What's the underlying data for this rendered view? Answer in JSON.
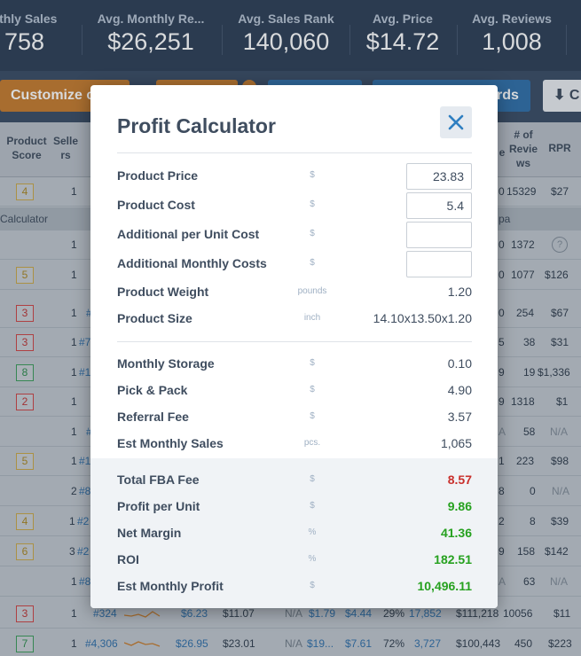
{
  "stats": [
    {
      "label": "nthly Sales",
      "value": "758"
    },
    {
      "label": "Avg. Monthly Re...",
      "value": "$26,251"
    },
    {
      "label": "Avg. Sales Rank",
      "value": "140,060"
    },
    {
      "label": "Avg. Price",
      "value": "$14.72"
    },
    {
      "label": "Avg. Reviews",
      "value": "1,008"
    }
  ],
  "toolbar": {
    "customize_label": "Customize c",
    "rds_label": "rds",
    "download_label": "C"
  },
  "grid": {
    "headers": {
      "product_score": "Product Score",
      "sellers": "Selle rs",
      "reviews": "# of Revie ws",
      "rpr": "RPR",
      "e_fragment": "e"
    },
    "calculator_label": "Calculator",
    "calculator_right": "pa",
    "rows": [
      {
        "score": "4",
        "score_color": "yellow",
        "sellers": "1",
        "mid": "",
        "right1": "0",
        "reviews": "15329",
        "rpr": "$27"
      },
      {
        "score": "",
        "score_color": "",
        "sellers": "1",
        "mid": "",
        "right1": "0",
        "reviews": "1372",
        "rpr": "?"
      },
      {
        "score": "5",
        "score_color": "yellow",
        "sellers": "1",
        "mid": "",
        "right1": "0",
        "reviews": "1077",
        "rpr": "$126"
      },
      {
        "score": "3",
        "score_color": "red",
        "sellers": "1",
        "mid": "#",
        "right1": "0",
        "reviews": "254",
        "rpr": "$67"
      },
      {
        "score": "3",
        "score_color": "red",
        "sellers": "1",
        "mid": "#7",
        "right1": "5",
        "reviews": "38",
        "rpr": "$31"
      },
      {
        "score": "8",
        "score_color": "green",
        "sellers": "1",
        "mid": "#1",
        "right1": "9",
        "reviews": "19",
        "rpr": "$1,336"
      },
      {
        "score": "2",
        "score_color": "red",
        "sellers": "1",
        "mid": "",
        "right1": "9",
        "reviews": "1318",
        "rpr": "$1"
      },
      {
        "score": "",
        "score_color": "",
        "sellers": "1",
        "mid": "#",
        "right1": "A",
        "reviews": "58",
        "rpr": "N/A"
      },
      {
        "score": "5",
        "score_color": "yellow",
        "sellers": "1",
        "mid": "#1",
        "right1": "1",
        "reviews": "223",
        "rpr": "$98"
      },
      {
        "score": "",
        "score_color": "",
        "sellers": "2",
        "mid": "#8",
        "right1": "8",
        "reviews": "0",
        "rpr": "N/A"
      },
      {
        "score": "4",
        "score_color": "yellow",
        "sellers": "1",
        "mid": "#2",
        "right1": "2",
        "reviews": "8",
        "rpr": "$39"
      },
      {
        "score": "6",
        "score_color": "yellow",
        "sellers": "3",
        "mid": "#2",
        "right1": "9",
        "reviews": "158",
        "rpr": "$142"
      },
      {
        "score": "",
        "score_color": "",
        "sellers": "1",
        "mid": "#8",
        "right1": "A",
        "reviews": "63",
        "rpr": "N/A"
      }
    ],
    "bottom_rows": [
      {
        "score": "3",
        "score_color": "red",
        "sellers": "1",
        "rank": "#324",
        "price": "$6.23",
        "cost": "$11.07",
        "c1": "N/A",
        "c2": "$1.79",
        "c3": "$4.44",
        "margin": "29%",
        "sales": "17,852",
        "revenue": "$111,218",
        "reviews": "10056",
        "rpr": "$11"
      },
      {
        "score": "7",
        "score_color": "green",
        "sellers": "1",
        "rank": "#4,306",
        "price": "$26.95",
        "cost": "$23.01",
        "c1": "N/A",
        "c2": "$19...",
        "c3": "$7.61",
        "margin": "72%",
        "sales": "3,727",
        "revenue": "$100,443",
        "reviews": "450",
        "rpr": "$223"
      }
    ]
  },
  "calculator": {
    "title": "Profit Calculator",
    "inputs": [
      {
        "label": "Product Price",
        "unit": "$",
        "value": "23.83"
      },
      {
        "label": "Product Cost",
        "unit": "$",
        "value": "5.4"
      },
      {
        "label": "Additional per Unit Cost",
        "unit": "$",
        "value": ""
      },
      {
        "label": "Additional Monthly Costs",
        "unit": "$",
        "value": ""
      }
    ],
    "specs": [
      {
        "label": "Product Weight",
        "unit": "pounds",
        "value": "1.20"
      },
      {
        "label": "Product Size",
        "unit": "inch",
        "value": "14.10x13.50x1.20"
      }
    ],
    "fees": [
      {
        "label": "Monthly Storage",
        "unit": "$",
        "value": "0.10"
      },
      {
        "label": "Pick & Pack",
        "unit": "$",
        "value": "4.90"
      },
      {
        "label": "Referral Fee",
        "unit": "$",
        "value": "3.57"
      },
      {
        "label": "Est Monthly Sales",
        "unit": "pcs.",
        "value": "1,065"
      }
    ],
    "totals": [
      {
        "label": "Total FBA Fee",
        "unit": "$",
        "value": "8.57",
        "color": "#c9302c"
      },
      {
        "label": "Profit per Unit",
        "unit": "$",
        "value": "9.86",
        "color": "#26a11f"
      },
      {
        "label": "Net Margin",
        "unit": "%",
        "value": "41.36",
        "color": "#26a11f"
      },
      {
        "label": "ROI",
        "unit": "%",
        "value": "182.51",
        "color": "#26a11f"
      },
      {
        "label": "Est Monthly Profit",
        "unit": "$",
        "value": "10,496.11",
        "color": "#26a11f"
      }
    ]
  }
}
